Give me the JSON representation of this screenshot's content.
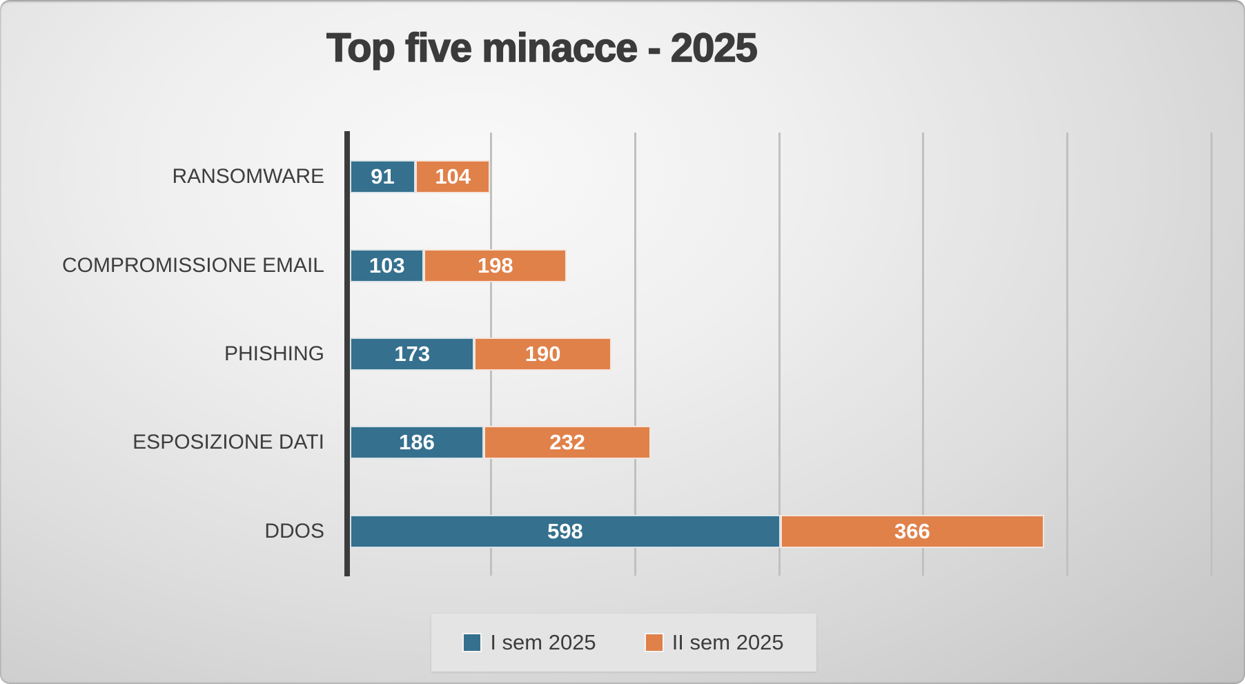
{
  "title": "Top five minacce - 2025",
  "colors": {
    "series1": "#35708E",
    "series2": "#E0814A",
    "axis": "#3c3c3c",
    "gridline": "#c0c0c0",
    "title_text": "#3b3b3b",
    "category_text": "#3d3d3d",
    "value_text": "#ffffff",
    "legend_background": "#e4e4e4"
  },
  "chart_data": {
    "type": "bar",
    "orientation": "horizontal",
    "stacked": true,
    "title": "Top five minacce - 2025",
    "categories": [
      "RANSOMWARE",
      "COMPROMISSIONE EMAIL",
      "PHISHING",
      "ESPOSIZIONE DATI",
      "DDOS"
    ],
    "series": [
      {
        "name": "I sem 2025",
        "color": "#35708E",
        "values": [
          91,
          103,
          173,
          186,
          598
        ]
      },
      {
        "name": "II sem 2025",
        "color": "#E0814A",
        "values": [
          104,
          198,
          190,
          232,
          366
        ]
      }
    ],
    "totals": [
      195,
      301,
      363,
      418,
      964
    ],
    "xlim": [
      0,
      1200
    ],
    "gridline_interval": 200,
    "grid": "vertical-only",
    "axis_ticks_visible": false,
    "value_labels": "inside-segments-white-bold",
    "legend_position": "bottom-center"
  },
  "legend": {
    "items": [
      {
        "label": "I sem 2025"
      },
      {
        "label": "II sem 2025"
      }
    ]
  }
}
